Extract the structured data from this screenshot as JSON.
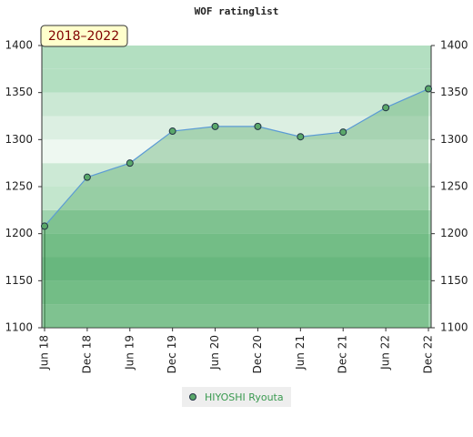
{
  "chart_data": {
    "type": "area-line",
    "title": "WOF ratinglist",
    "badge": "2018–2022",
    "categories": [
      "Jun 18",
      "Dec 18",
      "Jun 19",
      "Dec 19",
      "Jun 20",
      "Dec 20",
      "Jun 21",
      "Dec 21",
      "Jun 22",
      "Dec 22"
    ],
    "series": [
      {
        "name": "HIYOSHI Ryouta",
        "color": "#5aa86a",
        "line_color": "#5b9bd5",
        "values": [
          1208,
          1260,
          1275,
          1309,
          1314,
          1314,
          1303,
          1308,
          1334,
          1354
        ]
      }
    ],
    "ylim": [
      1100,
      1400
    ],
    "yticks": [
      1100,
      1150,
      1200,
      1250,
      1300,
      1350,
      1400
    ],
    "right_axis": true
  }
}
